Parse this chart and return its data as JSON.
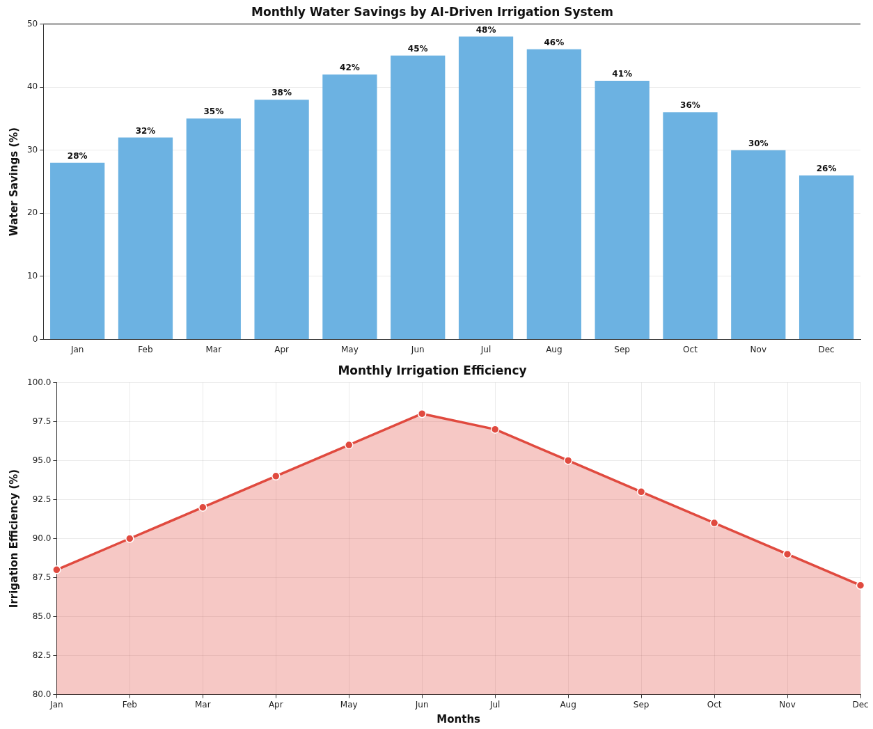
{
  "chart_data": [
    {
      "type": "bar",
      "title": "Monthly Water Savings by AI-Driven Irrigation System",
      "ylabel": "Water Savings (%)",
      "categories": [
        "Jan",
        "Feb",
        "Mar",
        "Apr",
        "May",
        "Jun",
        "Jul",
        "Aug",
        "Sep",
        "Oct",
        "Nov",
        "Dec"
      ],
      "values": [
        28,
        32,
        35,
        38,
        42,
        45,
        48,
        46,
        41,
        36,
        30,
        26
      ],
      "value_labels": [
        "28%",
        "32%",
        "35%",
        "38%",
        "42%",
        "45%",
        "48%",
        "46%",
        "41%",
        "36%",
        "30%",
        "26%"
      ],
      "color": "#6cb2e2",
      "ylim": [
        0,
        50
      ],
      "yticks": [
        0,
        10,
        20,
        30,
        40,
        50
      ],
      "grid": "y"
    },
    {
      "type": "area",
      "title": "Monthly Irrigation Efficiency",
      "xlabel": "Months",
      "ylabel": "Irrigation Efficiency (%)",
      "categories": [
        "Jan",
        "Feb",
        "Mar",
        "Apr",
        "May",
        "Jun",
        "Jul",
        "Aug",
        "Sep",
        "Oct",
        "Nov",
        "Dec"
      ],
      "values": [
        88,
        90,
        92,
        94,
        96,
        98,
        97,
        95,
        93,
        91,
        89,
        87
      ],
      "color": "#e04a3f",
      "marker": "circle",
      "ylim": [
        80,
        100
      ],
      "yticks": [
        {
          "value": 80,
          "label": "80.0"
        },
        {
          "value": 82.5,
          "label": "82.5"
        },
        {
          "value": 85,
          "label": "85.0"
        },
        {
          "value": 87.5,
          "label": "87.5"
        },
        {
          "value": 90,
          "label": "90.0"
        },
        {
          "value": 92.5,
          "label": "92.5"
        },
        {
          "value": 95,
          "label": "95.0"
        },
        {
          "value": 97.5,
          "label": "97.5"
        },
        {
          "value": 100,
          "label": "100.0"
        }
      ],
      "grid": true
    }
  ]
}
